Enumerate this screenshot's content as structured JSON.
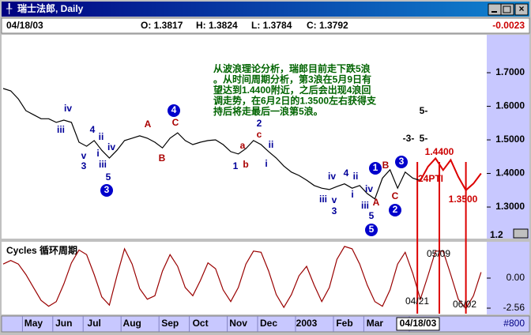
{
  "window": {
    "title": "瑞士法郎, Daily",
    "status": {
      "date": "04/18/03",
      "open": "O: 1.3817",
      "high": "H: 1.3824",
      "low": "L: 1.3784",
      "close": "C: 1.3792",
      "change": "-0.0023"
    },
    "footer": "#800"
  },
  "chart_data": [
    {
      "type": "line",
      "comment": [
        "从波浪理论分析，瑞郎目前走下跌5浪",
        "。从时间周期分析，第3浪在5月9日有",
        "望达到1.4400附近，之后会出现4浪回",
        "调走势，在6月2日的1.3500左右获得支",
        "持后将走最后一浪第5浪。"
      ],
      "categories": [
        null,
        null,
        null,
        null,
        "May",
        null,
        null,
        null,
        "Jun",
        null,
        null,
        null,
        "Jul",
        null,
        null,
        null,
        null,
        "Aug",
        null,
        null,
        null,
        null,
        "Sep",
        null,
        null,
        null,
        "Oct",
        null,
        null,
        null,
        null,
        "Nov",
        null,
        null,
        null,
        "Dec",
        null,
        null,
        null,
        null,
        "2003",
        null,
        null,
        null,
        null,
        "Feb",
        null,
        null,
        null,
        "Mar",
        null,
        null,
        null,
        null,
        null,
        "04/18/03",
        null,
        null,
        null,
        null,
        null,
        null,
        null,
        null
      ],
      "series": [
        {
          "color": "#000000",
          "values": [
            1.653,
            1.646,
            1.622,
            1.587,
            1.575,
            1.563,
            1.563,
            1.552,
            1.559,
            1.552,
            1.493,
            1.481,
            1.498,
            1.469,
            1.446,
            1.469,
            1.498,
            1.505,
            1.512,
            1.505,
            1.493,
            1.476,
            1.505,
            1.521,
            1.498,
            1.486,
            1.493,
            1.498,
            1.5,
            1.486,
            1.465,
            1.458,
            1.474,
            1.498,
            1.486,
            1.465,
            1.446,
            1.422,
            1.404,
            1.394,
            1.38,
            1.364,
            1.356,
            1.352,
            1.361,
            1.369,
            1.356,
            1.364,
            1.34,
            1.324,
            1.386,
            1.411,
            1.356,
            1.404,
            1.386,
            1.379,
            null,
            null,
            null,
            null,
            null,
            null,
            null,
            null
          ]
        },
        {
          "color": "#dd0000",
          "values": [
            null,
            null,
            null,
            null,
            null,
            null,
            null,
            null,
            null,
            null,
            null,
            null,
            null,
            null,
            null,
            null,
            null,
            null,
            null,
            null,
            null,
            null,
            null,
            null,
            null,
            null,
            null,
            null,
            null,
            null,
            null,
            null,
            null,
            null,
            null,
            null,
            null,
            null,
            null,
            null,
            null,
            null,
            null,
            null,
            null,
            null,
            null,
            null,
            null,
            null,
            null,
            null,
            null,
            null,
            null,
            1.379,
            1.42,
            1.445,
            1.41,
            1.44,
            1.39,
            1.35,
            1.37,
            1.4
          ]
        }
      ],
      "ylim": [
        1.206,
        1.813
      ],
      "yticks": [
        {
          "value": 1.7,
          "label": "1.7000"
        },
        {
          "value": 1.6,
          "label": "1.6000"
        },
        {
          "value": 1.5,
          "label": "1.5000"
        },
        {
          "value": 1.4,
          "label": "1.4000"
        },
        {
          "value": 1.3,
          "label": "1.3000"
        },
        {
          "value": 1.2,
          "label": "1.2"
        }
      ],
      "annotations": [
        {
          "text": "iv",
          "color": "#000099"
        },
        {
          "text": "iii",
          "color": "#000099"
        },
        {
          "text": "4",
          "color": "#000099"
        },
        {
          "text": "ii",
          "color": "#000099"
        },
        {
          "text": "i",
          "color": "#000099"
        },
        {
          "text": "iii",
          "color": "#000099"
        },
        {
          "text": "iv",
          "color": "#000099"
        },
        {
          "text": "v",
          "color": "#000099"
        },
        {
          "text": "3",
          "color": "#000099"
        },
        {
          "text": "5",
          "color": "#000099"
        },
        {
          "text": "3",
          "color": "#0000cc",
          "circled": true
        },
        {
          "text": "A",
          "color": "#aa0000"
        },
        {
          "text": "4",
          "color": "#0000cc",
          "circled": true
        },
        {
          "text": "C",
          "color": "#aa0000"
        },
        {
          "text": "B",
          "color": "#aa0000"
        },
        {
          "text": "2",
          "color": "#000099"
        },
        {
          "text": "c",
          "color": "#aa0000"
        },
        {
          "text": "a",
          "color": "#aa0000"
        },
        {
          "text": "ii",
          "color": "#000099"
        },
        {
          "text": "i",
          "color": "#000099"
        },
        {
          "text": "1",
          "color": "#000099"
        },
        {
          "text": "b",
          "color": "#aa0000"
        },
        {
          "text": "iv",
          "color": "#000099"
        },
        {
          "text": "4",
          "color": "#000099"
        },
        {
          "text": "ii",
          "color": "#000099"
        },
        {
          "text": "i",
          "color": "#000099"
        },
        {
          "text": "iii",
          "color": "#000099"
        },
        {
          "text": "v",
          "color": "#000099"
        },
        {
          "text": "3",
          "color": "#000099"
        },
        {
          "text": "iv",
          "color": "#000099"
        },
        {
          "text": "iii",
          "color": "#000099"
        },
        {
          "text": "A",
          "color": "#aa0000"
        },
        {
          "text": "5",
          "color": "#000099"
        },
        {
          "text": "5",
          "color": "#0000cc",
          "circled": true
        },
        {
          "text": "1",
          "color": "#0000cc",
          "circled": true
        },
        {
          "text": "B",
          "color": "#aa0000"
        },
        {
          "text": "3",
          "color": "#0000cc",
          "circled": true
        },
        {
          "text": "C",
          "color": "#aa0000"
        },
        {
          "text": "2",
          "color": "#0000cc",
          "circled": true
        },
        {
          "text": "-3-",
          "color": "#000000"
        },
        {
          "text": "5-",
          "color": "#000000"
        },
        {
          "text": "5-",
          "color": "#000000"
        },
        {
          "text": "1.4400",
          "color": "#cc0000"
        },
        {
          "text": "1.3500",
          "color": "#cc0000"
        },
        {
          "text": "24PTI",
          "color": "#cc0000"
        }
      ]
    },
    {
      "type": "line",
      "title": "Cycles 循环周期",
      "series": [
        {
          "color": "#990000",
          "values": [
            1.2,
            1.5,
            1.2,
            0.3,
            -0.8,
            -1.9,
            -2.4,
            -2.0,
            -0.5,
            1.3,
            2.4,
            2.0,
            0.3,
            -1.6,
            -2.3,
            0.2,
            2.5,
            1.2,
            -0.9,
            -1.8,
            -1.5,
            0.6,
            2.0,
            1.0,
            -0.8,
            -1.5,
            -0.2,
            1.3,
            0.8,
            -1.0,
            -2.0,
            -0.8,
            1.2,
            2.3,
            2.2,
            0.6,
            -1.4,
            -2.5,
            -1.4,
            0.2,
            1.0,
            -0.6,
            -2.0,
            -0.8,
            1.6,
            2.7,
            2.5,
            1.2,
            -0.6,
            -2.0,
            -2.4,
            -1.0,
            1.2,
            2.2,
            0.4,
            -1.8,
            0.2,
            2.3,
            2.3,
            0.3,
            -1.8,
            -2.6,
            -1.5,
            0.5
          ]
        }
      ],
      "ylim": [
        -3.03,
        3.03
      ],
      "yticks": [
        {
          "value": 0,
          "label": "0.00"
        },
        {
          "value": -2.56,
          "label": "-2.56"
        }
      ],
      "annotations": [
        {
          "text": "04/21"
        },
        {
          "text": "05/09"
        },
        {
          "text": "06/02"
        }
      ]
    }
  ]
}
